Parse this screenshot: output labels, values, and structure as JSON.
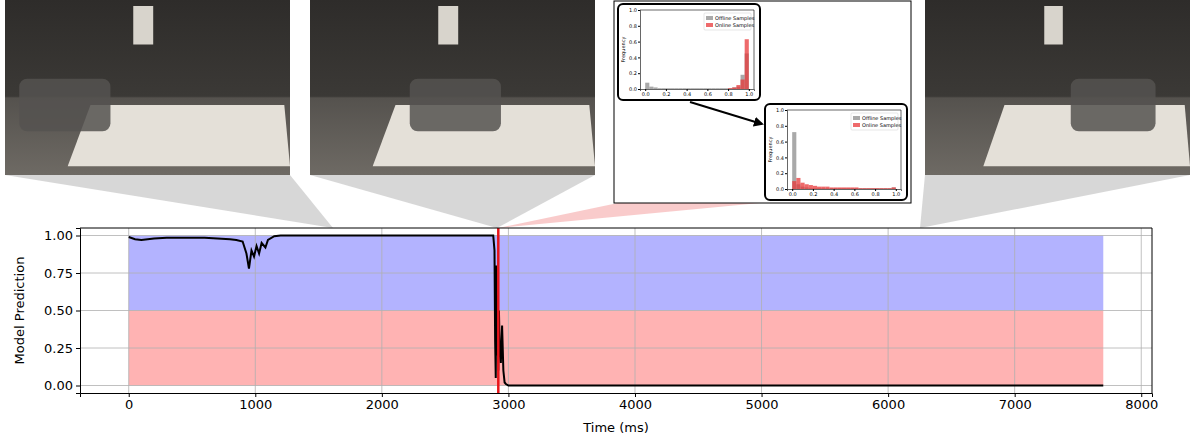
{
  "chart_data": [
    {
      "type": "line",
      "xlabel": "Time (ms)",
      "ylabel": "Model Prediction",
      "x": [
        0,
        50,
        100,
        150,
        200,
        300,
        400,
        500,
        600,
        700,
        800,
        850,
        900,
        930,
        950,
        970,
        990,
        1010,
        1030,
        1050,
        1080,
        1100,
        1150,
        1200,
        2000,
        2880,
        2890,
        2895,
        2900,
        2905,
        2910,
        2915,
        2920,
        2925,
        2930,
        2940,
        2950,
        2960,
        2970,
        2980,
        3000,
        5000,
        7700
      ],
      "values": [
        0.99,
        0.975,
        0.97,
        0.975,
        0.98,
        0.985,
        0.985,
        0.985,
        0.985,
        0.98,
        0.975,
        0.97,
        0.96,
        0.88,
        0.78,
        0.9,
        0.86,
        0.93,
        0.88,
        0.95,
        0.92,
        0.97,
        0.995,
        1,
        1,
        1,
        0.9,
        0.3,
        0.05,
        0.8,
        0.2,
        0.6,
        0.1,
        0.5,
        0.3,
        0.15,
        0.4,
        0.1,
        0.02,
        0.01,
        0,
        0,
        0
      ],
      "color": "#000000",
      "bands": [
        {
          "x0": 0,
          "x1": 7700,
          "y0": 0.5,
          "y1": 1.0,
          "color": "#b3b3ff"
        },
        {
          "x0": 0,
          "x1": 7700,
          "y0": 0.0,
          "y1": 0.5,
          "color": "#ffb3b3"
        }
      ],
      "vline": {
        "x": 2920,
        "color": "#e8141a"
      },
      "xlim": [
        -385,
        8085
      ],
      "ylim": [
        -0.05,
        1.05
      ],
      "xticks": [
        0,
        1000,
        2000,
        3000,
        4000,
        5000,
        6000,
        7000,
        8000
      ],
      "yticks": [
        {
          "value": 0,
          "label": "0.00"
        },
        {
          "value": 0.25,
          "label": "0.25"
        },
        {
          "value": 0.5,
          "label": "0.50"
        },
        {
          "value": 0.75,
          "label": "0.75"
        },
        {
          "value": 1,
          "label": "1.00"
        }
      ],
      "grid": true
    },
    {
      "type": "histogram",
      "ylabel": "Frequency",
      "bins": [
        0,
        0.04,
        0.08,
        0.12,
        0.16,
        0.2,
        0.24,
        0.28,
        0.32,
        0.36,
        0.4,
        0.44,
        0.48,
        0.52,
        0.56,
        0.6,
        0.64,
        0.68,
        0.72,
        0.76,
        0.8,
        0.84,
        0.88,
        0.92,
        0.96,
        1.0
      ],
      "series": [
        {
          "name": "Offline Samples",
          "color": "#8c8c8c",
          "values": [
            0.08,
            0.03,
            0.02,
            0.01,
            0.01,
            0.01,
            0.01,
            0.01,
            0.01,
            0.01,
            0.01,
            0.01,
            0.01,
            0.01,
            0.01,
            0.01,
            0.01,
            0.01,
            0.01,
            0.01,
            0.01,
            0.02,
            0.03,
            0.18,
            0.45
          ]
        },
        {
          "name": "Online Samples",
          "color": "#e8383a",
          "values": [
            0,
            0,
            0,
            0,
            0,
            0,
            0,
            0,
            0,
            0,
            0,
            0,
            0,
            0,
            0,
            0,
            0,
            0,
            0,
            0,
            0.01,
            0.02,
            0.05,
            0.12,
            0.63
          ]
        }
      ],
      "xlim": [
        -0.05,
        1.05
      ],
      "ylim": [
        0,
        1.0
      ],
      "xticks": [
        {
          "value": 0,
          "label": "0.0"
        },
        {
          "value": 0.2,
          "label": "0.2"
        },
        {
          "value": 0.4,
          "label": "0.4"
        },
        {
          "value": 0.6,
          "label": "0.6"
        },
        {
          "value": 0.8,
          "label": "0.8"
        },
        {
          "value": 1,
          "label": "1.0"
        }
      ],
      "yticks": [
        {
          "value": 0,
          "label": "0.0"
        },
        {
          "value": 0.2,
          "label": "0.2"
        },
        {
          "value": 0.4,
          "label": "0.4"
        },
        {
          "value": 0.6,
          "label": "0.6"
        },
        {
          "value": 0.8,
          "label": "0.8"
        },
        {
          "value": 1,
          "label": "1.0"
        }
      ],
      "legend": "upper right"
    },
    {
      "type": "histogram",
      "ylabel": "Frequency",
      "bins": [
        0,
        0.04,
        0.08,
        0.12,
        0.16,
        0.2,
        0.24,
        0.28,
        0.32,
        0.36,
        0.4,
        0.44,
        0.48,
        0.52,
        0.56,
        0.6,
        0.64,
        0.68,
        0.72,
        0.76,
        0.8,
        0.84,
        0.88,
        0.92,
        0.96,
        1.0
      ],
      "series": [
        {
          "name": "Offline Samples",
          "color": "#8c8c8c",
          "values": [
            0.72,
            0.06,
            0.03,
            0.02,
            0.01,
            0.01,
            0.01,
            0.01,
            0.01,
            0.01,
            0.01,
            0.01,
            0.01,
            0.01,
            0.01,
            0.01,
            0.01,
            0.01,
            0.01,
            0.01,
            0.01,
            0.01,
            0.01,
            0.01,
            0.02
          ]
        },
        {
          "name": "Online Samples",
          "color": "#e8383a",
          "values": [
            0.1,
            0.14,
            0.08,
            0.06,
            0.05,
            0.04,
            0.03,
            0.03,
            0.03,
            0.02,
            0.02,
            0.02,
            0.02,
            0.02,
            0.02,
            0.02,
            0.01,
            0.01,
            0.01,
            0.01,
            0.01,
            0.01,
            0.01,
            0.01,
            0.02
          ]
        }
      ],
      "xlim": [
        -0.05,
        1.05
      ],
      "ylim": [
        0,
        1.0
      ],
      "xticks": [
        {
          "value": 0,
          "label": "0.0"
        },
        {
          "value": 0.2,
          "label": "0.2"
        },
        {
          "value": 0.4,
          "label": "0.4"
        },
        {
          "value": 0.6,
          "label": "0.6"
        },
        {
          "value": 0.8,
          "label": "0.8"
        },
        {
          "value": 1,
          "label": "1.0"
        }
      ],
      "yticks": [
        {
          "value": 0,
          "label": "0.0"
        },
        {
          "value": 0.2,
          "label": "0.2"
        },
        {
          "value": 0.4,
          "label": "0.4"
        },
        {
          "value": 0.6,
          "label": "0.6"
        },
        {
          "value": 0.8,
          "label": "0.8"
        },
        {
          "value": 1,
          "label": "1.0"
        }
      ],
      "legend": "upper right"
    }
  ]
}
